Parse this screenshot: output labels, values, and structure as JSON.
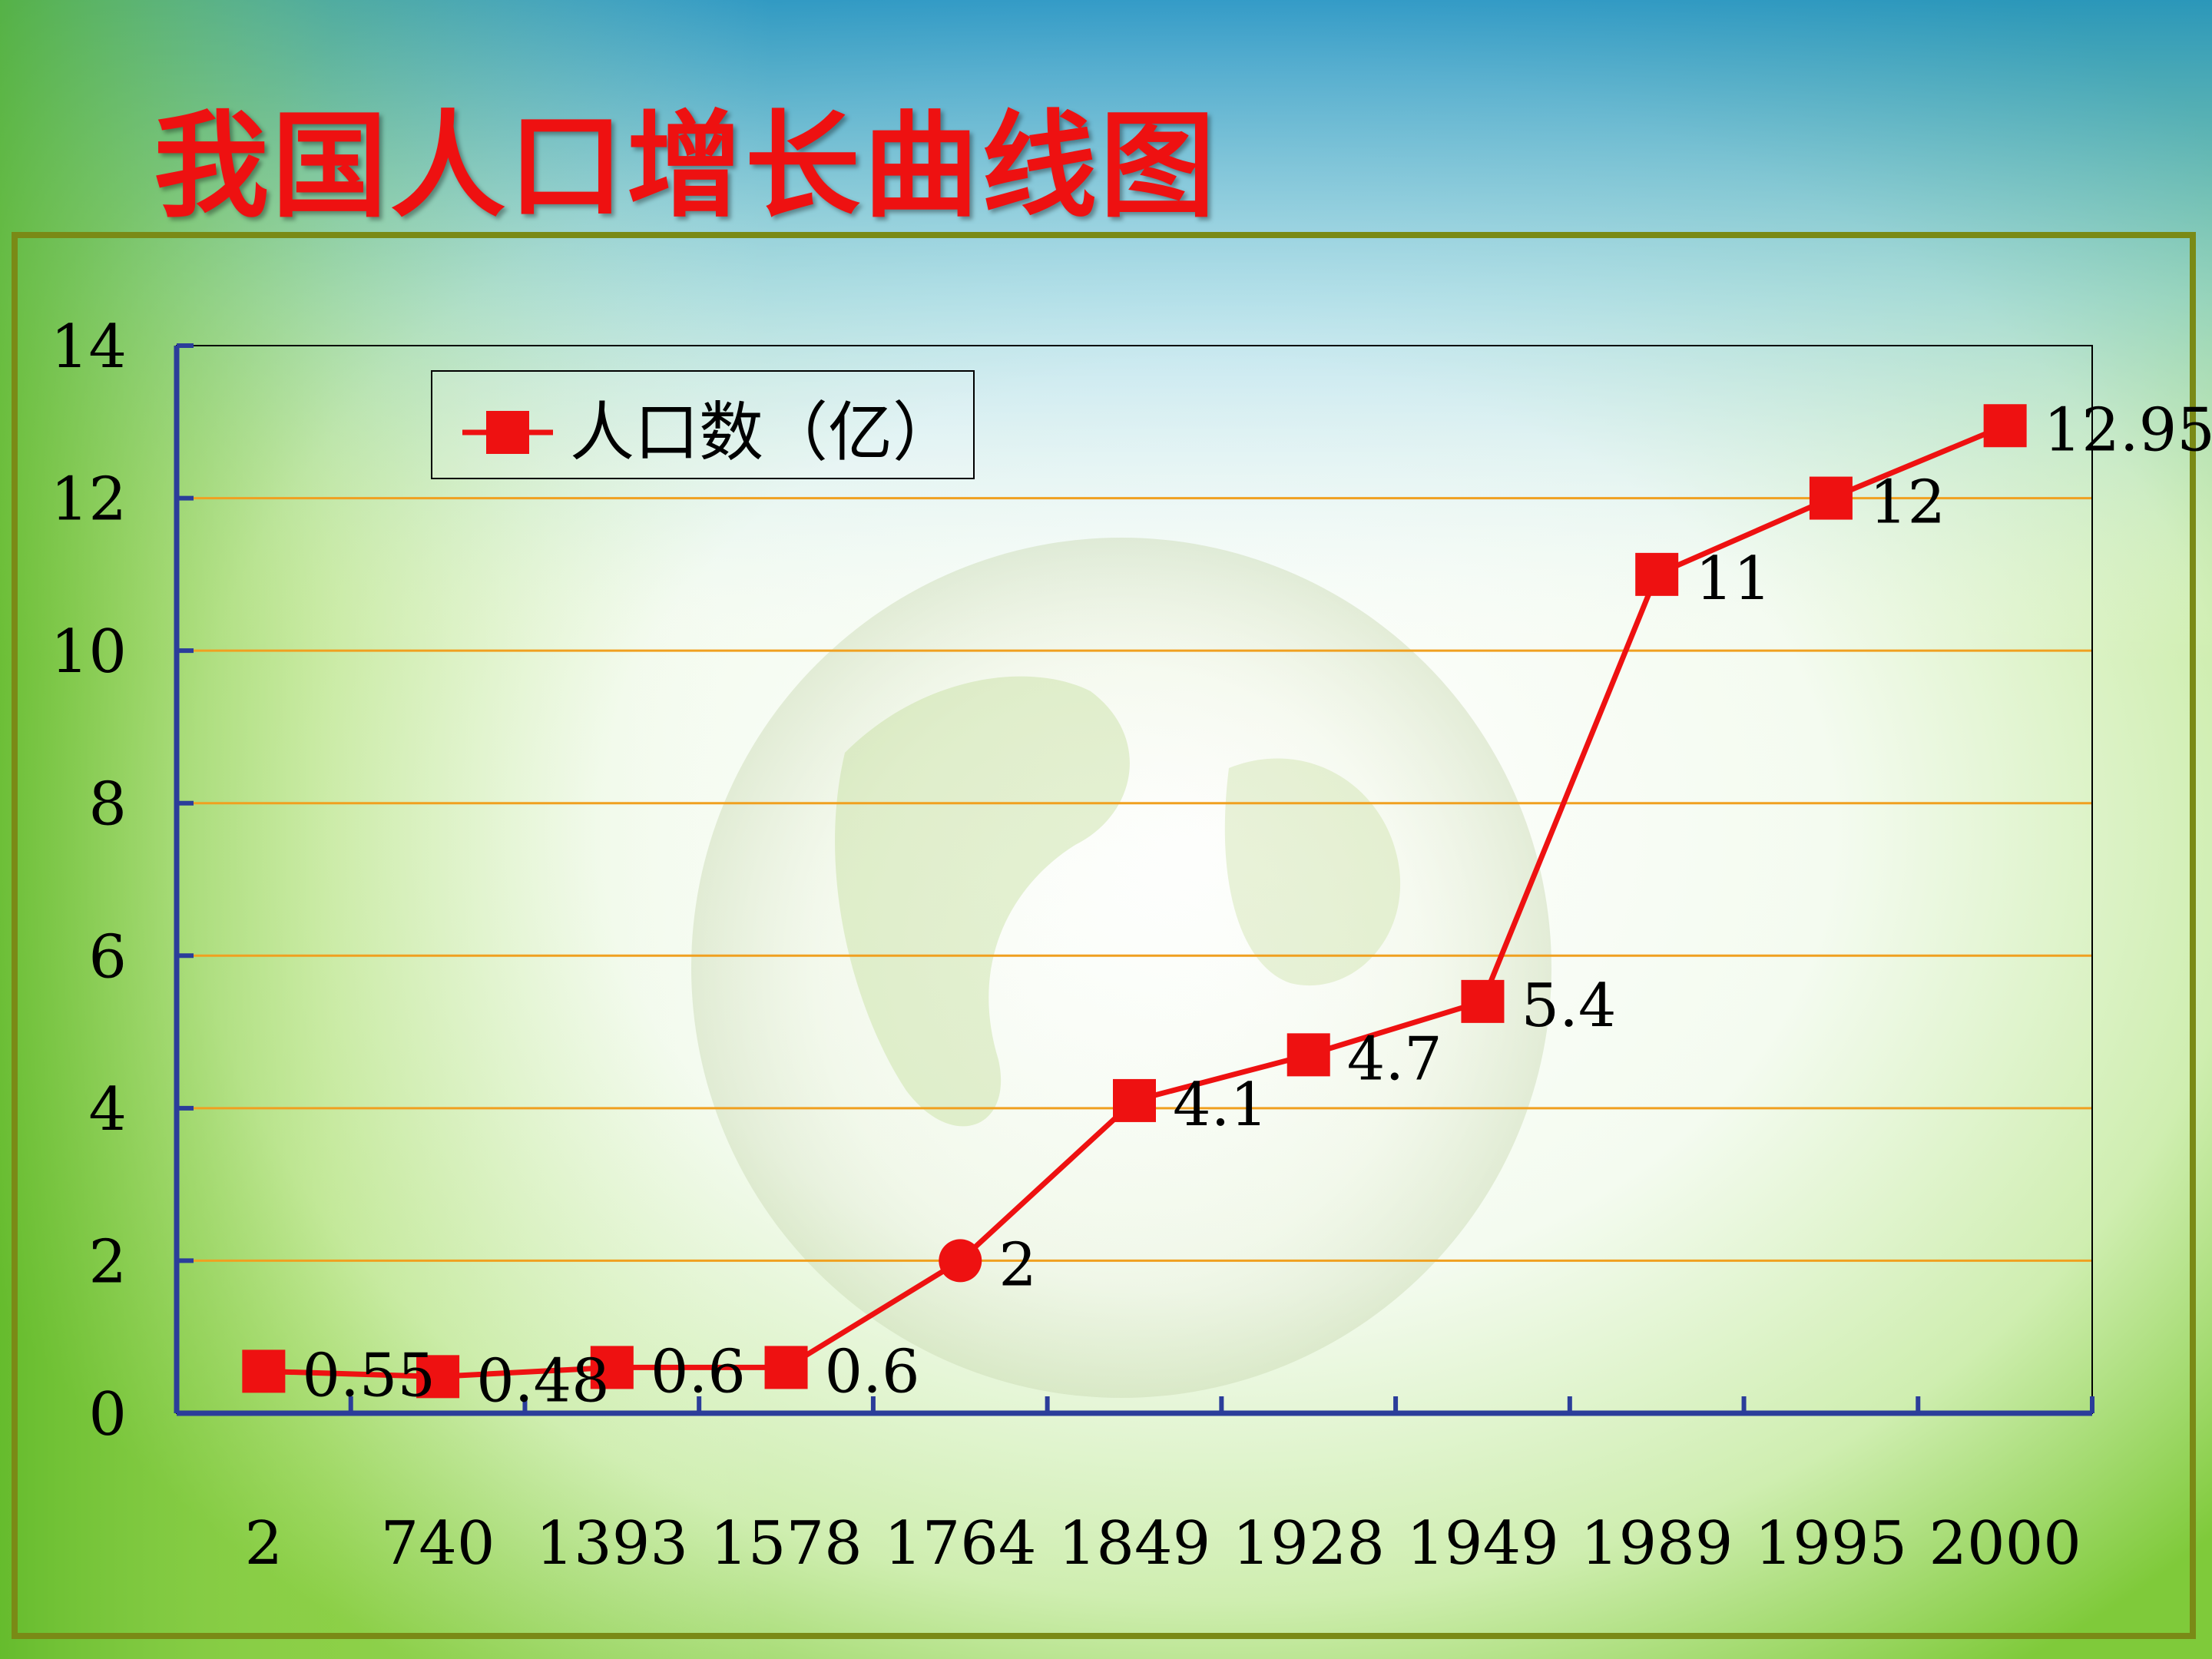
{
  "slide_title": "我国人口增长曲线图",
  "colors": {
    "line": "#ee1111",
    "marker": "#ee1111",
    "grid": "#f0a020",
    "axis": "#2b3d9a",
    "frame": "#7a8a16",
    "title": "#ee1111"
  },
  "chart_data": {
    "type": "line",
    "title": "",
    "xlabel": "",
    "ylabel": "",
    "categories": [
      "2",
      "740",
      "1393",
      "1578",
      "1764",
      "1849",
      "1928",
      "1949",
      "1989",
      "1995",
      "2000"
    ],
    "series": [
      {
        "name": "人口数（亿）",
        "values": [
          0.55,
          0.48,
          0.6,
          0.6,
          2,
          4.1,
          4.7,
          5.4,
          11,
          12,
          12.95
        ],
        "data_labels": [
          "0.55",
          "0.48",
          "0.6",
          "0.6",
          "2",
          "4.1",
          "4.7",
          "5.4",
          "11",
          "12",
          "12.95"
        ],
        "marker_shapes": [
          "square",
          "square",
          "square",
          "square",
          "circle",
          "square",
          "square",
          "square",
          "square",
          "square",
          "square"
        ]
      }
    ],
    "ylim": [
      0,
      14
    ],
    "yticks": [
      "0",
      "2",
      "4",
      "6",
      "8",
      "10",
      "12",
      "14"
    ],
    "grid": "horizontal",
    "legend_position": "top-left"
  }
}
